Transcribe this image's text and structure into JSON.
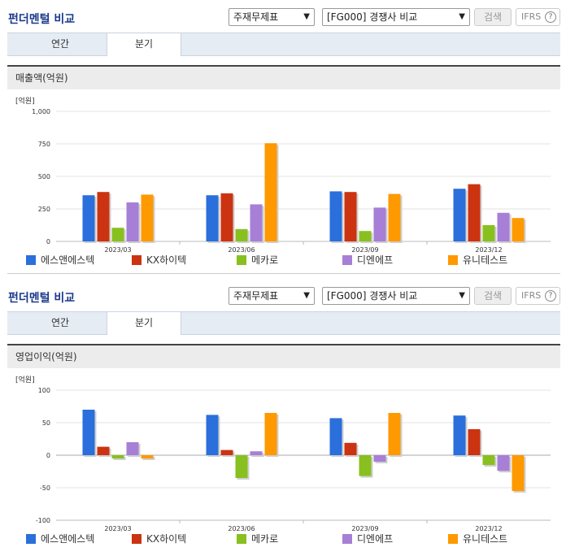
{
  "panels": [
    {
      "title": "펀더멘털 비교",
      "select1": "주재무제표",
      "select2": "[FG000] 경쟁사 비교",
      "search_label": "검색",
      "ifrs_label": "IFRS",
      "tabs": [
        "연간",
        "분기"
      ],
      "subtitle": "매출액(억원)",
      "unit": "[억원]",
      "legend": [
        "에스앤에스텍",
        "KX하이텍",
        "메카로",
        "디엔에프",
        "유니테스트"
      ]
    },
    {
      "title": "펀더멘털 비교",
      "select1": "주재무제표",
      "select2": "[FG000] 경쟁사 비교",
      "search_label": "검색",
      "ifrs_label": "IFRS",
      "tabs": [
        "연간",
        "분기"
      ],
      "subtitle": "영업이익(억원)",
      "unit": "[억원]",
      "legend": [
        "에스앤에스텍",
        "KX하이텍",
        "메카로",
        "디엔에프",
        "유니테스트"
      ]
    }
  ],
  "chart_data": [
    {
      "type": "bar",
      "title": "매출액(억원)",
      "ylabel": "[억원]",
      "categories": [
        "2023/03",
        "2023/06",
        "2023/09",
        "2023/12"
      ],
      "yticks": [
        "1,000",
        "750",
        "500",
        "250",
        "0"
      ],
      "ylim": [
        0,
        1000
      ],
      "series": [
        {
          "name": "에스앤에스텍",
          "color": "#2a6fdb",
          "values": [
            355,
            355,
            385,
            405
          ]
        },
        {
          "name": "KX하이텍",
          "color": "#cc3311",
          "values": [
            380,
            370,
            380,
            440
          ]
        },
        {
          "name": "메카로",
          "color": "#88c020",
          "values": [
            105,
            95,
            80,
            125
          ]
        },
        {
          "name": "디엔에프",
          "color": "#a77fd6",
          "values": [
            300,
            285,
            260,
            220
          ]
        },
        {
          "name": "유니테스트",
          "color": "#ff9900",
          "values": [
            360,
            755,
            365,
            180
          ]
        }
      ]
    },
    {
      "type": "bar",
      "title": "영업이익(억원)",
      "ylabel": "[억원]",
      "categories": [
        "2023/03",
        "2023/06",
        "2023/09",
        "2023/12"
      ],
      "yticks": [
        "100",
        "50",
        "0",
        "-50",
        "-100"
      ],
      "ylim": [
        -100,
        100
      ],
      "series": [
        {
          "name": "에스앤에스텍",
          "color": "#2a6fdb",
          "values": [
            70,
            62,
            57,
            61
          ]
        },
        {
          "name": "KX하이텍",
          "color": "#cc3311",
          "values": [
            13,
            8,
            19,
            40
          ]
        },
        {
          "name": "메카로",
          "color": "#88c020",
          "values": [
            -5,
            -35,
            -32,
            -15
          ]
        },
        {
          "name": "디엔에프",
          "color": "#a77fd6",
          "values": [
            20,
            6,
            -10,
            -24
          ]
        },
        {
          "name": "유니테스트",
          "color": "#ff9900",
          "values": [
            -5,
            65,
            65,
            -55
          ]
        }
      ]
    }
  ]
}
